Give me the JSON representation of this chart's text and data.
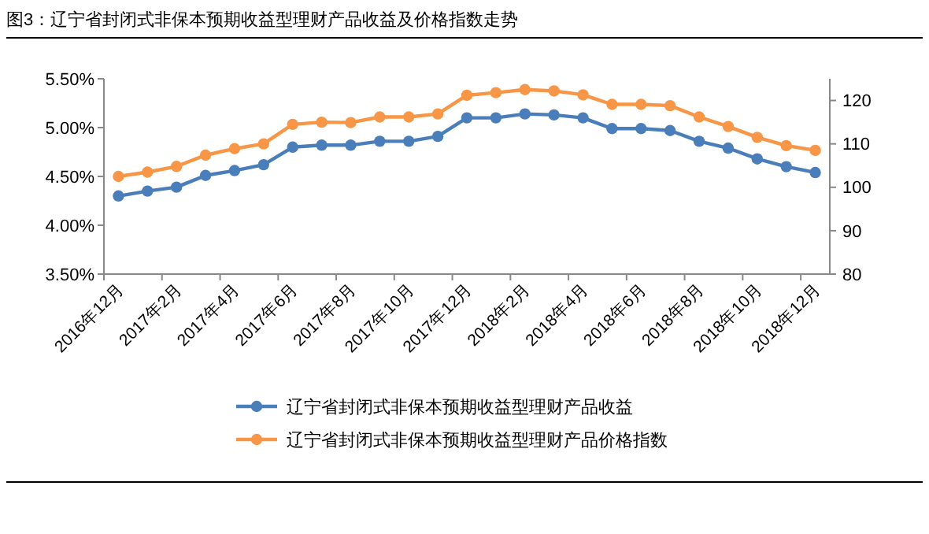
{
  "chart_data": {
    "type": "line",
    "title": "图3：辽宁省封闭式非保本预期收益型理财产品收益及价格指数走势",
    "categories": [
      "2016年12月",
      null,
      "2017年2月",
      null,
      "2017年4月",
      null,
      "2017年6月",
      null,
      "2017年8月",
      null,
      "2017年10月",
      null,
      "2017年12月",
      null,
      "2018年2月",
      null,
      "2018年4月",
      null,
      "2018年6月",
      null,
      "2018年8月",
      null,
      "2018年10月",
      null,
      "2018年12月"
    ],
    "series": [
      {
        "name": "辽宁省封闭式非保本预期收益型理财产品收益",
        "color": "#4a7ebb",
        "values": [
          4.3,
          4.35,
          4.39,
          4.51,
          4.56,
          4.62,
          4.8,
          4.82,
          4.82,
          4.86,
          4.86,
          4.91,
          5.1,
          5.1,
          5.14,
          5.13,
          5.1,
          4.99,
          4.99,
          4.97,
          4.86,
          4.79,
          4.68,
          4.6,
          4.54
        ]
      },
      {
        "name": "辽宁省封闭式非保本预期收益型理财产品价格指数",
        "color": "#f79646",
        "axis": "y2",
        "values": [
          102.5,
          103.5,
          104.8,
          107.4,
          108.9,
          110.0,
          114.5,
          115.0,
          114.9,
          116.2,
          116.2,
          116.9,
          121.2,
          121.8,
          122.5,
          122.2,
          121.3,
          119.1,
          119.1,
          118.8,
          116.2,
          114.0,
          111.5,
          109.6,
          108.5
        ]
      }
    ],
    "ylim": [
      3.5,
      5.5
    ],
    "yticks": [
      {
        "value": 3.5,
        "label": "3.50%"
      },
      {
        "value": 4,
        "label": "4.00%"
      },
      {
        "value": 4.5,
        "label": "4.50%"
      },
      {
        "value": 5,
        "label": "5.00%"
      },
      {
        "value": 5.5,
        "label": "5.50%"
      }
    ],
    "y2lim": [
      80,
      125
    ],
    "y2ticks": [
      80,
      90,
      100,
      110,
      120
    ],
    "grid": false,
    "legend": "bottom",
    "marker": "circle",
    "line_style": "solid"
  }
}
